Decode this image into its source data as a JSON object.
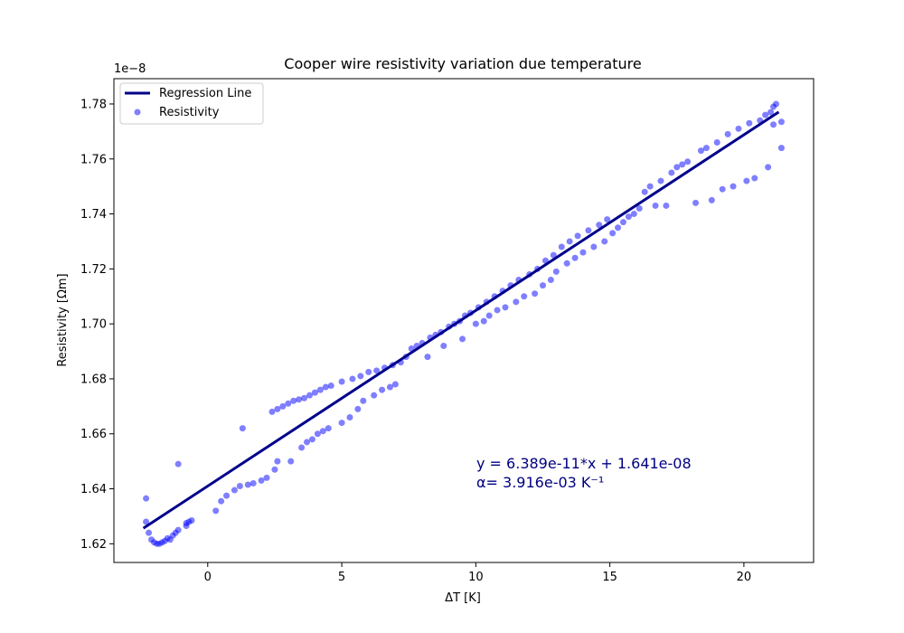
{
  "chart_data": {
    "type": "scatter",
    "title": "Cooper wire resistivity variation due temperature",
    "xlabel": "ΔT [K]",
    "ylabel": "Resistivity [Ωm]",
    "y_offset_text": "1e−8",
    "xlim": [
      -3.5,
      22.6
    ],
    "ylim": [
      1.6132e-08,
      1.7892e-08
    ],
    "x_ticks": [
      0,
      5,
      10,
      15,
      20
    ],
    "x_tick_labels": [
      "0",
      "5",
      "10",
      "15",
      "20"
    ],
    "y_ticks": [
      1.62e-08,
      1.64e-08,
      1.66e-08,
      1.68e-08,
      1.7e-08,
      1.72e-08,
      1.74e-08,
      1.76e-08,
      1.78e-08
    ],
    "y_tick_labels": [
      "1.62",
      "1.64",
      "1.66",
      "1.68",
      "1.70",
      "1.72",
      "1.74",
      "1.76",
      "1.78"
    ],
    "grid": false,
    "legend_position": "top-left",
    "colors": {
      "regression": "#00008b",
      "points": "#0000ff",
      "annotation": "#000080"
    },
    "series": [
      {
        "name": "Regression Line",
        "type": "line",
        "slope": 6.389e-11,
        "intercept": 1.641e-08,
        "x": [
          -2.4,
          21.3
        ]
      },
      {
        "name": "Resistivity",
        "type": "scatter",
        "points": [
          [
            -2.3,
            1.6365e-08
          ],
          [
            -2.3,
            1.628e-08
          ],
          [
            -2.2,
            1.624e-08
          ],
          [
            -2.1,
            1.6215e-08
          ],
          [
            -2.0,
            1.6205e-08
          ],
          [
            -1.9,
            1.62e-08
          ],
          [
            -1.8,
            1.62e-08
          ],
          [
            -1.7,
            1.6205e-08
          ],
          [
            -1.6,
            1.621e-08
          ],
          [
            -1.5,
            1.622e-08
          ],
          [
            -1.4,
            1.6215e-08
          ],
          [
            -1.3,
            1.623e-08
          ],
          [
            -1.2,
            1.624e-08
          ],
          [
            -1.1,
            1.625e-08
          ],
          [
            -1.1,
            1.649e-08
          ],
          [
            -0.8,
            1.6265e-08
          ],
          [
            -0.8,
            1.6275e-08
          ],
          [
            -0.7,
            1.628e-08
          ],
          [
            -0.6,
            1.6285e-08
          ],
          [
            0.3,
            1.632e-08
          ],
          [
            0.5,
            1.6355e-08
          ],
          [
            0.7,
            1.6375e-08
          ],
          [
            1.0,
            1.6395e-08
          ],
          [
            1.2,
            1.641e-08
          ],
          [
            1.3,
            1.662e-08
          ],
          [
            1.5,
            1.6415e-08
          ],
          [
            1.7,
            1.642e-08
          ],
          [
            2.0,
            1.643e-08
          ],
          [
            2.2,
            1.644e-08
          ],
          [
            2.4,
            1.668e-08
          ],
          [
            2.5,
            1.647e-08
          ],
          [
            2.6,
            1.65e-08
          ],
          [
            2.6,
            1.669e-08
          ],
          [
            2.8,
            1.67e-08
          ],
          [
            3.0,
            1.671e-08
          ],
          [
            3.1,
            1.65e-08
          ],
          [
            3.2,
            1.672e-08
          ],
          [
            3.4,
            1.6725e-08
          ],
          [
            3.5,
            1.655e-08
          ],
          [
            3.6,
            1.673e-08
          ],
          [
            3.7,
            1.657e-08
          ],
          [
            3.8,
            1.674e-08
          ],
          [
            3.9,
            1.658e-08
          ],
          [
            4.0,
            1.675e-08
          ],
          [
            4.1,
            1.66e-08
          ],
          [
            4.2,
            1.676e-08
          ],
          [
            4.3,
            1.661e-08
          ],
          [
            4.4,
            1.677e-08
          ],
          [
            4.5,
            1.662e-08
          ],
          [
            4.6,
            1.6775e-08
          ],
          [
            5.0,
            1.664e-08
          ],
          [
            5.0,
            1.679e-08
          ],
          [
            5.3,
            1.666e-08
          ],
          [
            5.4,
            1.68e-08
          ],
          [
            5.6,
            1.669e-08
          ],
          [
            5.7,
            1.681e-08
          ],
          [
            5.8,
            1.672e-08
          ],
          [
            6.0,
            1.6825e-08
          ],
          [
            6.2,
            1.674e-08
          ],
          [
            6.3,
            1.683e-08
          ],
          [
            6.5,
            1.676e-08
          ],
          [
            6.6,
            1.684e-08
          ],
          [
            6.8,
            1.677e-08
          ],
          [
            6.9,
            1.685e-08
          ],
          [
            7.0,
            1.678e-08
          ],
          [
            7.2,
            1.686e-08
          ],
          [
            7.4,
            1.688e-08
          ],
          [
            7.6,
            1.691e-08
          ],
          [
            7.8,
            1.692e-08
          ],
          [
            8.0,
            1.693e-08
          ],
          [
            8.2,
            1.688e-08
          ],
          [
            8.3,
            1.695e-08
          ],
          [
            8.5,
            1.696e-08
          ],
          [
            8.7,
            1.697e-08
          ],
          [
            8.8,
            1.692e-08
          ],
          [
            9.0,
            1.699e-08
          ],
          [
            9.2,
            1.7e-08
          ],
          [
            9.4,
            1.701e-08
          ],
          [
            9.5,
            1.6945e-08
          ],
          [
            9.6,
            1.703e-08
          ],
          [
            9.8,
            1.704e-08
          ],
          [
            10.0,
            1.7e-08
          ],
          [
            10.1,
            1.706e-08
          ],
          [
            10.3,
            1.701e-08
          ],
          [
            10.4,
            1.708e-08
          ],
          [
            10.5,
            1.703e-08
          ],
          [
            10.7,
            1.71e-08
          ],
          [
            10.8,
            1.705e-08
          ],
          [
            11.0,
            1.712e-08
          ],
          [
            11.1,
            1.706e-08
          ],
          [
            11.3,
            1.714e-08
          ],
          [
            11.5,
            1.708e-08
          ],
          [
            11.6,
            1.716e-08
          ],
          [
            11.8,
            1.71e-08
          ],
          [
            12.0,
            1.718e-08
          ],
          [
            12.2,
            1.711e-08
          ],
          [
            12.3,
            1.72e-08
          ],
          [
            12.5,
            1.714e-08
          ],
          [
            12.6,
            1.723e-08
          ],
          [
            12.8,
            1.716e-08
          ],
          [
            12.9,
            1.725e-08
          ],
          [
            13.0,
            1.719e-08
          ],
          [
            13.2,
            1.728e-08
          ],
          [
            13.4,
            1.722e-08
          ],
          [
            13.5,
            1.73e-08
          ],
          [
            13.7,
            1.724e-08
          ],
          [
            13.8,
            1.732e-08
          ],
          [
            14.0,
            1.726e-08
          ],
          [
            14.2,
            1.734e-08
          ],
          [
            14.4,
            1.728e-08
          ],
          [
            14.6,
            1.736e-08
          ],
          [
            14.8,
            1.73e-08
          ],
          [
            14.9,
            1.738e-08
          ],
          [
            15.1,
            1.733e-08
          ],
          [
            15.3,
            1.735e-08
          ],
          [
            15.5,
            1.737e-08
          ],
          [
            15.7,
            1.739e-08
          ],
          [
            15.9,
            1.74e-08
          ],
          [
            16.1,
            1.742e-08
          ],
          [
            16.3,
            1.748e-08
          ],
          [
            16.5,
            1.75e-08
          ],
          [
            16.7,
            1.743e-08
          ],
          [
            16.9,
            1.752e-08
          ],
          [
            17.1,
            1.743e-08
          ],
          [
            17.3,
            1.755e-08
          ],
          [
            17.5,
            1.757e-08
          ],
          [
            17.7,
            1.758e-08
          ],
          [
            17.9,
            1.759e-08
          ],
          [
            18.2,
            1.744e-08
          ],
          [
            18.4,
            1.763e-08
          ],
          [
            18.6,
            1.764e-08
          ],
          [
            18.8,
            1.745e-08
          ],
          [
            19.0,
            1.766e-08
          ],
          [
            19.2,
            1.749e-08
          ],
          [
            19.4,
            1.769e-08
          ],
          [
            19.6,
            1.75e-08
          ],
          [
            19.8,
            1.771e-08
          ],
          [
            20.1,
            1.752e-08
          ],
          [
            20.2,
            1.773e-08
          ],
          [
            20.4,
            1.753e-08
          ],
          [
            20.6,
            1.774e-08
          ],
          [
            20.8,
            1.776e-08
          ],
          [
            20.9,
            1.757e-08
          ],
          [
            21.0,
            1.777e-08
          ],
          [
            21.1,
            1.779e-08
          ],
          [
            21.2,
            1.78e-08
          ],
          [
            21.1,
            1.7725e-08
          ],
          [
            21.4,
            1.7735e-08
          ],
          [
            21.4,
            1.764e-08
          ]
        ]
      }
    ],
    "annotations": [
      "y = 6.389e-11*x + 1.641e-08",
      "α= 3.916e-03 K⁻¹"
    ]
  }
}
